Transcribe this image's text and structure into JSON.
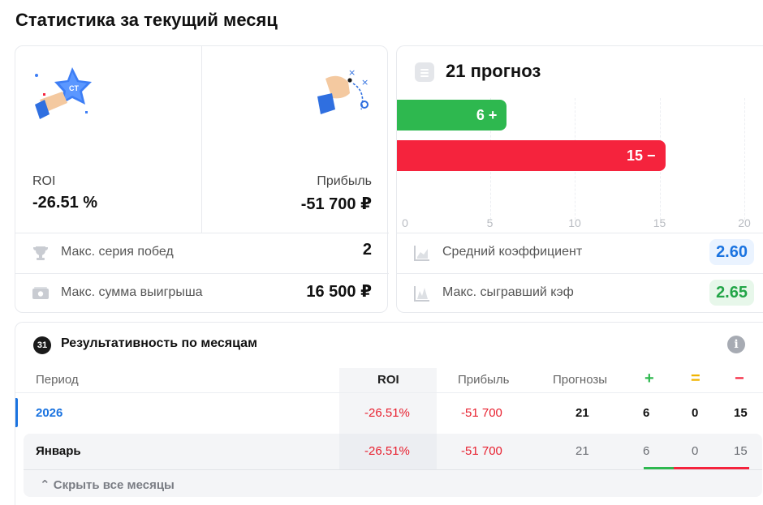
{
  "page": {
    "title": "Статистика за текущий месяц"
  },
  "summary": {
    "roi_label": "ROI",
    "roi_value": "-26.51 %",
    "profit_label": "Прибыль",
    "profit_value": "-51 700 ₽",
    "rows": [
      {
        "label": "Макс. серия побед",
        "value": "2",
        "icon": "trophy-icon"
      },
      {
        "label": "Макс. сумма выигрыша",
        "value": "16 500 ₽",
        "icon": "cash-icon"
      }
    ]
  },
  "forecast": {
    "title": "21 прогноз",
    "rows": [
      {
        "label": "Средний коэффициент",
        "value": "2.60",
        "icon": "chart-icon"
      },
      {
        "label": "Макс. сыгравший кэф",
        "value": "2.65",
        "icon": "peak-chart-icon"
      }
    ]
  },
  "chart_data": {
    "type": "bar",
    "orientation": "horizontal",
    "categories": [
      "win",
      "loss"
    ],
    "values": [
      6,
      15
    ],
    "bar_labels": [
      "6 +",
      "15 −"
    ],
    "colors": [
      "#2eb84f",
      "#f5233d"
    ],
    "xlim": [
      0,
      20
    ],
    "xticks": [
      "0",
      "5",
      "10",
      "15",
      "20"
    ],
    "grid": true
  },
  "monthly": {
    "title": "Результативность по месяцам",
    "calendar_badge": "31",
    "columns": {
      "period": "Период",
      "roi": "ROI",
      "profit": "Прибыль",
      "forecasts": "Прогнозы",
      "win_symbol": "+",
      "draw_symbol": "=",
      "loss_symbol": "−"
    },
    "year_row": {
      "period": "2026",
      "roi": "-26.51%",
      "profit": "-51 700",
      "forecasts": "21",
      "wins": "6",
      "draws": "0",
      "losses": "15"
    },
    "month_row": {
      "period": "Январь",
      "roi": "-26.51%",
      "profit": "-51 700",
      "forecasts": "21",
      "wins": "6",
      "draws": "0",
      "losses": "15",
      "win_share": 0.2857
    },
    "hide_label": "⌃ Скрыть все месяцы",
    "accent": "#1a73e0"
  }
}
